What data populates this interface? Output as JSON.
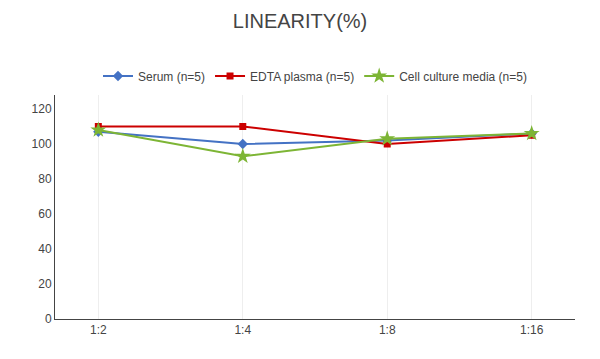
{
  "chart_data": {
    "type": "line",
    "title": "LINEARITY(%)",
    "categories": [
      "1:2",
      "1:4",
      "1:8",
      "1:16"
    ],
    "series": [
      {
        "name": "Serum (n=5)",
        "color": "#4472C4",
        "marker": "diamond",
        "values": [
          107,
          100,
          102,
          106
        ]
      },
      {
        "name": "EDTA plasma (n=5)",
        "color": "#CC0000",
        "marker": "square",
        "values": [
          110,
          110,
          100,
          105
        ]
      },
      {
        "name": "Cell culture media (n=5)",
        "color": "#7DB535",
        "marker": "star",
        "values": [
          108,
          93,
          103,
          106
        ]
      }
    ],
    "ylim": [
      0,
      128
    ],
    "yticks": [
      0,
      20,
      40,
      60,
      80,
      100,
      120
    ],
    "grid": "x",
    "legend": "top"
  }
}
